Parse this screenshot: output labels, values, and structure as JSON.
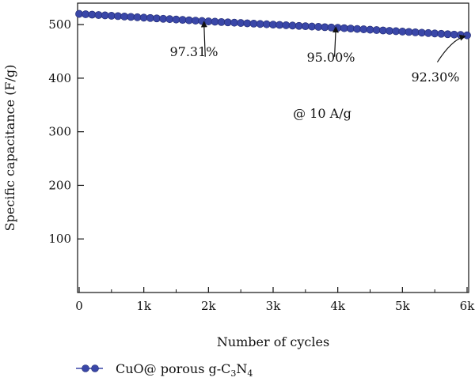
{
  "chart_data": {
    "type": "scatter",
    "xlabel": "Number of cycles",
    "ylabel": "Specific capacitance (F/g)",
    "xlim": [
      0,
      6000
    ],
    "ylim": [
      0,
      540
    ],
    "x_ticks": [
      0,
      1000,
      2000,
      3000,
      4000,
      5000,
      6000
    ],
    "x_tick_labels": [
      "0",
      "1k",
      "2k",
      "3k",
      "4k",
      "5k",
      "6k"
    ],
    "y_ticks": [
      100,
      200,
      300,
      400,
      500
    ],
    "y_tick_labels": [
      "100",
      "200",
      "300",
      "400",
      "500"
    ],
    "legend_position": "bottom-left",
    "series": [
      {
        "name_parts": [
          "CuO@ porous g-C",
          "3",
          "N",
          "4"
        ],
        "color": "#3a47a8",
        "x_start": 0,
        "x_end": 6000,
        "x_step": 100,
        "anchors": [
          {
            "x": 0,
            "y": 520
          },
          {
            "x": 2000,
            "y": 506
          },
          {
            "x": 4000,
            "y": 494
          },
          {
            "x": 6000,
            "y": 480
          }
        ]
      }
    ],
    "annotations": [
      {
        "text": "97.31%",
        "arrow_from": {
          "x": 1950,
          "y": 440
        },
        "arrow_to": {
          "x": 1930,
          "y": 504
        }
      },
      {
        "text": "95.00%",
        "arrow_from": {
          "x": 3950,
          "y": 440
        },
        "arrow_to": {
          "x": 3970,
          "y": 494
        }
      },
      {
        "text": "92.30%",
        "arrow_from": {
          "x": 5540,
          "y": 430
        },
        "arrow_to": {
          "x": 5960,
          "y": 478
        }
      },
      {
        "text": "@ 10 A/g"
      }
    ]
  }
}
